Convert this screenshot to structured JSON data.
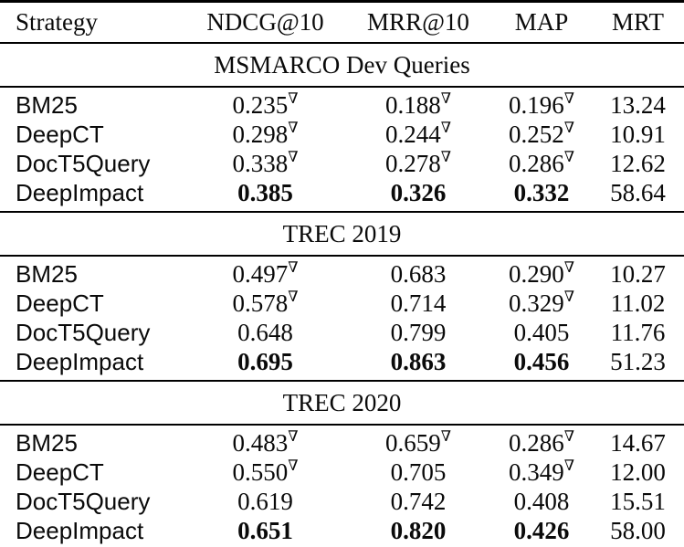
{
  "table": {
    "sup_symbol": "∇",
    "columns": [
      "Strategy",
      "NDCG@10",
      "MRR@10",
      "MAP",
      "MRT"
    ],
    "sections": [
      {
        "title": "MSMARCO Dev Queries",
        "rows": [
          {
            "strategy": "BM25",
            "values": [
              {
                "t": "0.235",
                "s": true,
                "b": false
              },
              {
                "t": "0.188",
                "s": true,
                "b": false
              },
              {
                "t": "0.196",
                "s": true,
                "b": false
              },
              {
                "t": "13.24",
                "s": false,
                "b": false
              }
            ]
          },
          {
            "strategy": "DeepCT",
            "values": [
              {
                "t": "0.298",
                "s": true,
                "b": false
              },
              {
                "t": "0.244",
                "s": true,
                "b": false
              },
              {
                "t": "0.252",
                "s": true,
                "b": false
              },
              {
                "t": "10.91",
                "s": false,
                "b": false
              }
            ]
          },
          {
            "strategy": "DocT5Query",
            "values": [
              {
                "t": "0.338",
                "s": true,
                "b": false
              },
              {
                "t": "0.278",
                "s": true,
                "b": false
              },
              {
                "t": "0.286",
                "s": true,
                "b": false
              },
              {
                "t": "12.62",
                "s": false,
                "b": false
              }
            ]
          },
          {
            "strategy": "DeepImpact",
            "values": [
              {
                "t": "0.385",
                "s": false,
                "b": true
              },
              {
                "t": "0.326",
                "s": false,
                "b": true
              },
              {
                "t": "0.332",
                "s": false,
                "b": true
              },
              {
                "t": "58.64",
                "s": false,
                "b": false
              }
            ]
          }
        ]
      },
      {
        "title": "TREC 2019",
        "rows": [
          {
            "strategy": "BM25",
            "values": [
              {
                "t": "0.497",
                "s": true,
                "b": false
              },
              {
                "t": "0.683",
                "s": false,
                "b": false
              },
              {
                "t": "0.290",
                "s": true,
                "b": false
              },
              {
                "t": "10.27",
                "s": false,
                "b": false
              }
            ]
          },
          {
            "strategy": "DeepCT",
            "values": [
              {
                "t": "0.578",
                "s": true,
                "b": false
              },
              {
                "t": "0.714",
                "s": false,
                "b": false
              },
              {
                "t": "0.329",
                "s": true,
                "b": false
              },
              {
                "t": "11.02",
                "s": false,
                "b": false
              }
            ]
          },
          {
            "strategy": "DocT5Query",
            "values": [
              {
                "t": "0.648",
                "s": false,
                "b": false
              },
              {
                "t": "0.799",
                "s": false,
                "b": false
              },
              {
                "t": "0.405",
                "s": false,
                "b": false
              },
              {
                "t": "11.76",
                "s": false,
                "b": false
              }
            ]
          },
          {
            "strategy": "DeepImpact",
            "values": [
              {
                "t": "0.695",
                "s": false,
                "b": true
              },
              {
                "t": "0.863",
                "s": false,
                "b": true
              },
              {
                "t": "0.456",
                "s": false,
                "b": true
              },
              {
                "t": "51.23",
                "s": false,
                "b": false
              }
            ]
          }
        ]
      },
      {
        "title": "TREC 2020",
        "rows": [
          {
            "strategy": "BM25",
            "values": [
              {
                "t": "0.483",
                "s": true,
                "b": false
              },
              {
                "t": "0.659",
                "s": true,
                "b": false
              },
              {
                "t": "0.286",
                "s": true,
                "b": false
              },
              {
                "t": "14.67",
                "s": false,
                "b": false
              }
            ]
          },
          {
            "strategy": "DeepCT",
            "values": [
              {
                "t": "0.550",
                "s": true,
                "b": false
              },
              {
                "t": "0.705",
                "s": false,
                "b": false
              },
              {
                "t": "0.349",
                "s": true,
                "b": false
              },
              {
                "t": "12.00",
                "s": false,
                "b": false
              }
            ]
          },
          {
            "strategy": "DocT5Query",
            "values": [
              {
                "t": "0.619",
                "s": false,
                "b": false
              },
              {
                "t": "0.742",
                "s": false,
                "b": false
              },
              {
                "t": "0.408",
                "s": false,
                "b": false
              },
              {
                "t": "15.51",
                "s": false,
                "b": false
              }
            ]
          },
          {
            "strategy": "DeepImpact",
            "values": [
              {
                "t": "0.651",
                "s": false,
                "b": true
              },
              {
                "t": "0.820",
                "s": false,
                "b": true
              },
              {
                "t": "0.426",
                "s": false,
                "b": true
              },
              {
                "t": "58.00",
                "s": false,
                "b": false
              }
            ]
          }
        ]
      }
    ]
  }
}
